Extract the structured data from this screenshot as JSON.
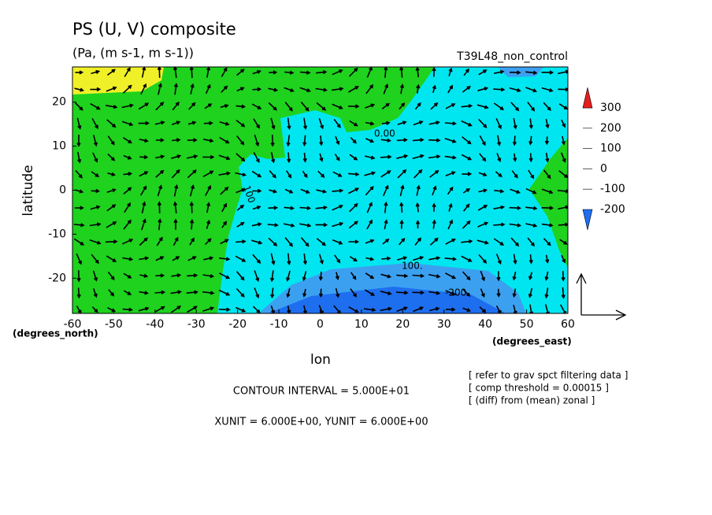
{
  "chart_data": {
    "type": "contour-map",
    "title": "PS (U, V) composite",
    "subtitle": "(Pa, (m s-1, m s-1))",
    "experiment": "T39L48_non_control",
    "x_label": "lon",
    "y_label": "latitude",
    "x_unit_label": "(degrees_east)",
    "y_unit_label": "(degrees_north)",
    "xlim": [
      -60,
      60
    ],
    "ylim": [
      -28,
      28
    ],
    "xticks": [
      -60,
      -50,
      -40,
      -30,
      -20,
      -10,
      0,
      10,
      20,
      30,
      40,
      50,
      60
    ],
    "yticks": [
      -20,
      -10,
      0,
      10,
      20
    ],
    "colorbar": {
      "levels": [
        -200,
        -100,
        0,
        100,
        200,
        300
      ],
      "colors": [
        "#1e6ef0",
        "#3ca0f0",
        "#00e6f0",
        "#1ed21e",
        "#f0f028",
        "#f0a000",
        "#e61e1e"
      ]
    },
    "contour_labels": [
      "0.00",
      "100",
      "100.",
      "-200"
    ],
    "contour_interval": "CONTOUR INTERVAL = 5.000E+01",
    "units_note": "XUNIT = 6.000E+00, YUNIT = 6.000E+00",
    "notes": [
      "[ refer to grav spct filtering data ]",
      "[ comp threshold = 0.00015 ]",
      "[ (diff) from (mean) zonal ]"
    ]
  }
}
